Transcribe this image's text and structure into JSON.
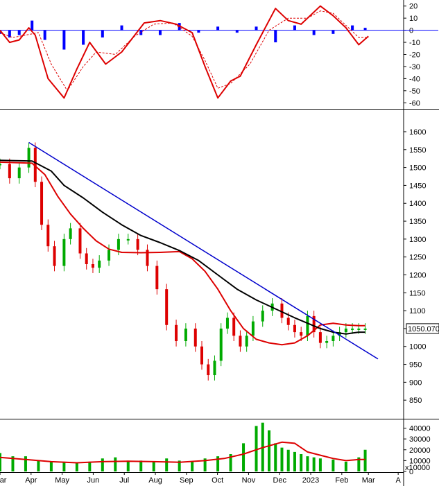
{
  "chart_data": [
    {
      "type": "bar",
      "panel": "oscillator",
      "title": "",
      "ylim": [
        -65,
        25
      ],
      "yticks": [
        "20",
        "10",
        "0",
        "-10",
        "-20",
        "-30",
        "-40",
        "-50",
        "-60"
      ],
      "yvalues": [
        20,
        10,
        0,
        -10,
        -20,
        -30,
        -40,
        -50,
        -60
      ],
      "series": [
        {
          "kind": "histogram",
          "color": "#0000ff",
          "x": [
            0,
            3,
            6,
            10,
            14,
            20,
            26,
            32,
            38,
            44,
            50,
            56,
            62,
            68,
            74,
            80,
            86,
            92,
            98,
            104,
            110,
            114
          ],
          "values": [
            -3,
            -6,
            -4,
            8,
            -8,
            -16,
            -12,
            -6,
            4,
            -4,
            -4,
            6,
            -2,
            3,
            -2,
            3,
            -10,
            4,
            -4,
            -3,
            4,
            2
          ]
        },
        {
          "kind": "line",
          "color": "#dd0000",
          "x": [
            0,
            3,
            6,
            9,
            11,
            15,
            20,
            24,
            28,
            33,
            38,
            45,
            50,
            55,
            60,
            64,
            68,
            72,
            75,
            80,
            86,
            90,
            94,
            100,
            104,
            108,
            112,
            115
          ],
          "values": [
            0,
            -10,
            -8,
            2,
            -4,
            -40,
            -56,
            -32,
            -10,
            -28,
            -18,
            6,
            8,
            5,
            -2,
            -30,
            -56,
            -42,
            -38,
            -12,
            18,
            8,
            5,
            20,
            12,
            2,
            -12,
            -5
          ]
        },
        {
          "kind": "dashed",
          "color": "#dd0000",
          "x": [
            0,
            4,
            8,
            12,
            16,
            21,
            26,
            30,
            36,
            42,
            48,
            54,
            60,
            64,
            68,
            72,
            78,
            84,
            90,
            96,
            100,
            104,
            108,
            112,
            115
          ],
          "values": [
            -2,
            -6,
            -4,
            -2,
            -28,
            -50,
            -30,
            -18,
            -20,
            -5,
            5,
            6,
            -5,
            -25,
            -48,
            -44,
            -28,
            0,
            10,
            10,
            16,
            14,
            4,
            -6,
            -6
          ]
        }
      ]
    },
    {
      "type": "line",
      "panel": "price",
      "title": "",
      "ylim": [
        800,
        1660
      ],
      "yticks": [
        "1600",
        "1550",
        "1500",
        "1450",
        "1400",
        "1350",
        "1300",
        "1250",
        "1200",
        "1150",
        "1100",
        "1050",
        "1000",
        "950",
        "900",
        "850"
      ],
      "yvalues": [
        1600,
        1550,
        1500,
        1450,
        1400,
        1350,
        1300,
        1250,
        1200,
        1150,
        1100,
        1050,
        1000,
        950,
        900,
        850
      ],
      "last_value_label": "1050.070",
      "last_value": 1050.07,
      "series": [
        {
          "kind": "candles",
          "colors": {
            "up": "#00aa00",
            "down": "#dd0000"
          },
          "x": [
            0,
            3,
            6,
            9,
            11,
            13,
            15,
            17,
            20,
            22,
            25,
            27,
            29,
            31,
            34,
            37,
            40,
            43,
            46,
            49,
            52,
            55,
            58,
            61,
            63,
            65,
            67,
            69,
            71,
            73,
            75,
            77,
            79,
            82,
            85,
            88,
            90,
            92,
            94,
            96,
            98,
            100,
            102,
            104,
            106,
            108,
            110,
            112,
            114
          ],
          "values": [
            1510,
            1470,
            1500,
            1555,
            1460,
            1340,
            1280,
            1225,
            1300,
            1330,
            1260,
            1230,
            1220,
            1240,
            1270,
            1300,
            1300,
            1270,
            1225,
            1160,
            1060,
            1015,
            1050,
            1000,
            950,
            920,
            960,
            1050,
            1080,
            1030,
            1000,
            1030,
            1070,
            1100,
            1120,
            1080,
            1060,
            1040,
            1030,
            1085,
            1040,
            1010,
            1015,
            1030,
            1040,
            1050,
            1050,
            1050,
            1050
          ]
        },
        {
          "kind": "line",
          "color": "#dd0000",
          "x": [
            0,
            10,
            14,
            18,
            22,
            26,
            30,
            34,
            38,
            44,
            50,
            56,
            60,
            64,
            68,
            72,
            76,
            80,
            84,
            88,
            92,
            96,
            100,
            104,
            108,
            112,
            114
          ],
          "values": [
            1515,
            1512,
            1480,
            1420,
            1370,
            1330,
            1295,
            1272,
            1263,
            1262,
            1263,
            1265,
            1245,
            1210,
            1160,
            1100,
            1050,
            1020,
            1010,
            1005,
            1010,
            1030,
            1060,
            1065,
            1060,
            1058,
            1058
          ]
        },
        {
          "kind": "line",
          "color": "#000000",
          "x": [
            0,
            10,
            16,
            20,
            26,
            32,
            38,
            44,
            50,
            56,
            62,
            68,
            74,
            80,
            86,
            92,
            96,
            100,
            104,
            108,
            112,
            114
          ],
          "values": [
            1520,
            1518,
            1490,
            1450,
            1415,
            1375,
            1340,
            1310,
            1290,
            1268,
            1240,
            1200,
            1160,
            1130,
            1105,
            1080,
            1065,
            1050,
            1040,
            1035,
            1040,
            1040
          ]
        },
        {
          "kind": "trendline",
          "color": "#0000cc",
          "x": [
            9,
            118
          ],
          "values": [
            1570,
            965
          ]
        }
      ]
    },
    {
      "type": "bar",
      "panel": "volume",
      "title": "",
      "ylim": [
        0,
        48000
      ],
      "yticks": [
        "40000",
        "30000",
        "20000",
        "10000",
        "0"
      ],
      "yvalues": [
        40000,
        30000,
        20000,
        10000,
        0
      ],
      "unit_label": "x10000",
      "series": [
        {
          "kind": "bars",
          "color": "#00aa00",
          "x": [
            0,
            4,
            8,
            12,
            16,
            20,
            24,
            28,
            32,
            36,
            40,
            44,
            48,
            52,
            56,
            60,
            64,
            68,
            72,
            76,
            80,
            82,
            84,
            86,
            88,
            90,
            92,
            94,
            96,
            98,
            100,
            104,
            108,
            112,
            114
          ],
          "values": [
            17000,
            14000,
            14000,
            10000,
            9000,
            9000,
            8000,
            9000,
            12000,
            13000,
            10000,
            10000,
            9000,
            12000,
            10000,
            9000,
            12000,
            14000,
            16000,
            26000,
            42000,
            45000,
            38000,
            26000,
            22000,
            20000,
            18000,
            16000,
            14000,
            13000,
            12000,
            11000,
            9000,
            13000,
            20000
          ]
        },
        {
          "kind": "line",
          "color": "#dd0000",
          "x": [
            0,
            8,
            16,
            24,
            32,
            40,
            48,
            56,
            64,
            70,
            76,
            82,
            88,
            92,
            96,
            100,
            104,
            108,
            112,
            114
          ],
          "values": [
            13000,
            11000,
            9000,
            8000,
            9000,
            9500,
            9000,
            8500,
            10000,
            12000,
            16000,
            22000,
            27000,
            26000,
            18000,
            15000,
            12000,
            10000,
            11000,
            11000
          ]
        }
      ]
    }
  ],
  "x_axis": {
    "labels": [
      "Mar",
      "Apr",
      "May",
      "Jun",
      "Jul",
      "Aug",
      "Sep",
      "Oct",
      "Nov",
      "Dec",
      "2023",
      "Feb",
      "Mar",
      "A"
    ],
    "positions": [
      0,
      9.7,
      19.4,
      29.1,
      38.8,
      48.5,
      58.2,
      67.9,
      77.6,
      87.3,
      97.0,
      106.7,
      115.0,
      124.3
    ],
    "domain": [
      0,
      126
    ]
  }
}
